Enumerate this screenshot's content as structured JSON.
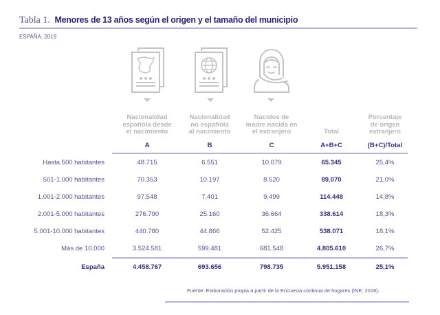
{
  "title": {
    "label": "Tabla 1.",
    "text": "Menores de 13 años según el origen y el tamaño del municipio"
  },
  "subtitle": "ESPAÑA, 2019",
  "colors": {
    "accent": "#3a2a85",
    "rule": "#b7aedb",
    "icon": "#c6c2c8",
    "header_text": "#b9b4bc"
  },
  "icons": [
    "spanish-passport-icon",
    "foreign-passport-icon",
    "headscarf-woman-icon"
  ],
  "columns": [
    {
      "header": [
        "Nacionalidad",
        "española desde",
        "el nacimiento"
      ],
      "code": "A"
    },
    {
      "header": [
        "Nacionalidad",
        "no española",
        "al nacimiento"
      ],
      "code": "B"
    },
    {
      "header": [
        "Nacidos de",
        "madre nacida en",
        "el extranjero"
      ],
      "code": "C"
    },
    {
      "header": [
        "Total"
      ],
      "code": "A+B+C"
    },
    {
      "header": [
        "Porcentaje",
        "de origen",
        "extranjero"
      ],
      "code": "(B+C)/Total"
    }
  ],
  "rows": [
    {
      "label": "Hasta 500 habitantes",
      "a": "48.715",
      "b": "6.551",
      "c": "10.079",
      "total": "65.345",
      "pct": "25,4%"
    },
    {
      "label": "501-1.000 habitantes",
      "a": "70.353",
      "b": "10.197",
      "c": "8.520",
      "total": "89.070",
      "pct": "21,0%"
    },
    {
      "label": "1.001-2.000 habitantes",
      "a": "97.548",
      "b": "7.401",
      "c": "9.499",
      "total": "114.448",
      "pct": "14,8%"
    },
    {
      "label": "2.001-5.000 habitantes",
      "a": "276.790",
      "b": "25.160",
      "c": "36.664",
      "total": "338.614",
      "pct": "18,3%"
    },
    {
      "label": "5.001-10.000 habitantes",
      "a": "440.780",
      "b": "44.866",
      "c": "52.425",
      "total": "538.071",
      "pct": "18,1%"
    },
    {
      "label": "Más de 10.000",
      "a": "3.524.581",
      "b": "599.481",
      "c": "681.548",
      "total": "4.805.610",
      "pct": "26,7%"
    }
  ],
  "total_row": {
    "label": "España",
    "a": "4.458.767",
    "b": "693.656",
    "c": "798.735",
    "total": "5.951.158",
    "pct": "25,1%"
  },
  "source": "Fuente: Elaboración propia a partir de la Encuesta continua de hogares (INE, 2018)."
}
